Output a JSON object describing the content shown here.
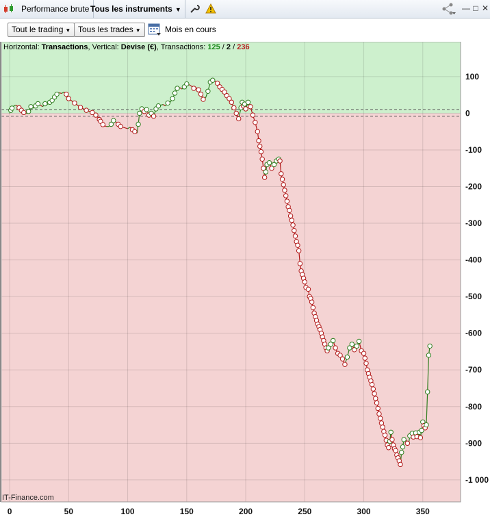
{
  "toolbar": {
    "perf_label": "Performance brute",
    "instruments_label": "Tous les instruments",
    "trading_filter": "Tout le trading",
    "trades_filter": "Tous les trades",
    "period_label": "Mois en cours"
  },
  "header": {
    "h_prefix": "Horizontal: ",
    "h_value": "Transactions",
    "v_prefix": ", Vertical: ",
    "v_value": "Devise (€)",
    "t_prefix": ", Transactions: ",
    "t_win": "125",
    "sep1": " / ",
    "t_neutral": "2",
    "sep2": " / ",
    "t_loss": "236"
  },
  "brand": "IT-Finance.com",
  "colors": {
    "profit_zone": "#cdf0cd",
    "loss_zone": "#f4d3d3",
    "up_line": "#2e7d1e",
    "down_line": "#b01818"
  },
  "chart_data": {
    "type": "line",
    "xlabel": "",
    "ylabel": "",
    "xlim": [
      -7,
      382
    ],
    "ylim": [
      -1060,
      195
    ],
    "x_ticks": [
      0,
      50,
      100,
      150,
      200,
      250,
      300,
      350
    ],
    "x_tick_labels": [
      "0",
      "50",
      "100",
      "150",
      "200",
      "250",
      "300",
      "350"
    ],
    "y_ticks": [
      100,
      0,
      -100,
      -200,
      -300,
      -400,
      -500,
      -600,
      -700,
      -800,
      -900,
      -1000
    ],
    "y_tick_labels": [
      "100",
      "0",
      "-100",
      "-200",
      "-300",
      "-400",
      "-500",
      "-600",
      "-700",
      "-800",
      "-900",
      "-1 000"
    ],
    "thresholds": [
      10,
      -8
    ],
    "grid": true,
    "series": [
      {
        "points": [
          [
            0,
            0
          ],
          [
            1,
            8
          ],
          [
            2,
            14
          ],
          [
            3,
            18
          ],
          [
            4,
            21
          ],
          [
            5,
            22
          ],
          [
            6,
            21
          ],
          [
            8,
            15
          ],
          [
            10,
            8
          ],
          [
            12,
            2
          ],
          [
            14,
            -1
          ],
          [
            16,
            5
          ],
          [
            18,
            18
          ],
          [
            20,
            14
          ],
          [
            22,
            20
          ],
          [
            24,
            26
          ],
          [
            26,
            22
          ],
          [
            28,
            18
          ],
          [
            30,
            26
          ],
          [
            32,
            24
          ],
          [
            34,
            30
          ],
          [
            36,
            35
          ],
          [
            38,
            44
          ],
          [
            40,
            52
          ],
          [
            42,
            56
          ],
          [
            44,
            54
          ],
          [
            46,
            58
          ],
          [
            48,
            52
          ],
          [
            50,
            40
          ],
          [
            55,
            28
          ],
          [
            60,
            16
          ],
          [
            65,
            8
          ],
          [
            70,
            2
          ],
          [
            72,
            0
          ],
          [
            73,
            -5
          ],
          [
            74,
            -9
          ],
          [
            75,
            -12
          ],
          [
            76,
            -17
          ],
          [
            77,
            -22
          ],
          [
            78,
            -26
          ],
          [
            79,
            -31
          ],
          [
            80,
            -34
          ],
          [
            82,
            -36
          ],
          [
            84,
            -36
          ],
          [
            86,
            -30
          ],
          [
            88,
            -20
          ],
          [
            90,
            -24
          ],
          [
            92,
            -30
          ],
          [
            94,
            -36
          ],
          [
            96,
            -38
          ],
          [
            98,
            -40
          ],
          [
            100,
            -42
          ],
          [
            102,
            -38
          ],
          [
            104,
            -45
          ],
          [
            106,
            -50
          ],
          [
            108,
            -54
          ],
          [
            109,
            -30
          ],
          [
            110,
            0
          ],
          [
            112,
            12
          ],
          [
            114,
            5
          ],
          [
            116,
            10
          ],
          [
            118,
            -5
          ],
          [
            120,
            0
          ],
          [
            122,
            -8
          ],
          [
            124,
            12
          ],
          [
            126,
            20
          ],
          [
            128,
            22
          ],
          [
            130,
            24
          ],
          [
            132,
            20
          ],
          [
            134,
            28
          ],
          [
            136,
            30
          ],
          [
            138,
            40
          ],
          [
            140,
            55
          ],
          [
            142,
            68
          ],
          [
            144,
            70
          ],
          [
            146,
            66
          ],
          [
            148,
            72
          ],
          [
            150,
            80
          ],
          [
            152,
            78
          ],
          [
            154,
            74
          ],
          [
            156,
            68
          ],
          [
            158,
            70
          ],
          [
            160,
            64
          ],
          [
            162,
            52
          ],
          [
            164,
            38
          ],
          [
            166,
            42
          ],
          [
            168,
            60
          ],
          [
            170,
            85
          ],
          [
            172,
            90
          ],
          [
            174,
            88
          ],
          [
            176,
            82
          ],
          [
            178,
            72
          ],
          [
            180,
            65
          ],
          [
            182,
            58
          ],
          [
            184,
            48
          ],
          [
            186,
            40
          ],
          [
            188,
            30
          ],
          [
            190,
            15
          ],
          [
            192,
            0
          ],
          [
            194,
            -15
          ],
          [
            196,
            15
          ],
          [
            197,
            30
          ],
          [
            198,
            20
          ],
          [
            199,
            25
          ],
          [
            200,
            12
          ],
          [
            202,
            30
          ],
          [
            204,
            18
          ],
          [
            206,
            -5
          ],
          [
            208,
            -25
          ],
          [
            210,
            -50
          ],
          [
            211,
            -75
          ],
          [
            212,
            -90
          ],
          [
            213,
            -105
          ],
          [
            214,
            -125
          ],
          [
            215,
            -150
          ],
          [
            216,
            -175
          ],
          [
            217,
            -160
          ],
          [
            218,
            -140
          ],
          [
            220,
            -135
          ],
          [
            222,
            -150
          ],
          [
            224,
            -140
          ],
          [
            226,
            -130
          ],
          [
            228,
            -125
          ],
          [
            229,
            -130
          ],
          [
            230,
            -165
          ],
          [
            231,
            -180
          ],
          [
            232,
            -195
          ],
          [
            233,
            -210
          ],
          [
            234,
            -225
          ],
          [
            235,
            -240
          ],
          [
            236,
            -255
          ],
          [
            237,
            -265
          ],
          [
            238,
            -280
          ],
          [
            239,
            -292
          ],
          [
            240,
            -305
          ],
          [
            241,
            -320
          ],
          [
            242,
            -335
          ],
          [
            243,
            -350
          ],
          [
            244,
            -360
          ],
          [
            245,
            -375
          ],
          [
            246,
            -410
          ],
          [
            247,
            -430
          ],
          [
            248,
            -440
          ],
          [
            249,
            -450
          ],
          [
            250,
            -460
          ],
          [
            251,
            -475
          ],
          [
            253,
            -480
          ],
          [
            254,
            -500
          ],
          [
            255,
            -505
          ],
          [
            256,
            -515
          ],
          [
            257,
            -530
          ],
          [
            258,
            -545
          ],
          [
            259,
            -555
          ],
          [
            260,
            -565
          ],
          [
            261,
            -575
          ],
          [
            262,
            -582
          ],
          [
            263,
            -590
          ],
          [
            264,
            -600
          ],
          [
            265,
            -610
          ],
          [
            266,
            -620
          ],
          [
            267,
            -630
          ],
          [
            268,
            -640
          ],
          [
            269,
            -648
          ],
          [
            270,
            -640
          ],
          [
            272,
            -630
          ],
          [
            274,
            -620
          ],
          [
            276,
            -640
          ],
          [
            278,
            -655
          ],
          [
            280,
            -660
          ],
          [
            282,
            -670
          ],
          [
            284,
            -685
          ],
          [
            286,
            -665
          ],
          [
            288,
            -640
          ],
          [
            290,
            -630
          ],
          [
            292,
            -645
          ],
          [
            294,
            -635
          ],
          [
            296,
            -622
          ],
          [
            298,
            -648
          ],
          [
            300,
            -655
          ],
          [
            301,
            -668
          ],
          [
            302,
            -682
          ],
          [
            303,
            -700
          ],
          [
            304,
            -710
          ],
          [
            305,
            -720
          ],
          [
            306,
            -730
          ],
          [
            307,
            -740
          ],
          [
            308,
            -752
          ],
          [
            309,
            -765
          ],
          [
            310,
            -778
          ],
          [
            311,
            -790
          ],
          [
            312,
            -805
          ],
          [
            313,
            -820
          ],
          [
            314,
            -832
          ],
          [
            315,
            -845
          ],
          [
            316,
            -856
          ],
          [
            317,
            -868
          ],
          [
            318,
            -878
          ],
          [
            319,
            -892
          ],
          [
            320,
            -905
          ],
          [
            321,
            -912
          ],
          [
            322,
            -895
          ],
          [
            323,
            -870
          ],
          [
            324,
            -890
          ],
          [
            325,
            -905
          ],
          [
            326,
            -915
          ],
          [
            327,
            -920
          ],
          [
            328,
            -932
          ],
          [
            329,
            -940
          ],
          [
            330,
            -948
          ],
          [
            331,
            -958
          ],
          [
            332,
            -925
          ],
          [
            333,
            -910
          ],
          [
            334,
            -890
          ],
          [
            336,
            -892
          ],
          [
            337,
            -900
          ],
          [
            338,
            -902
          ],
          [
            339,
            -880
          ],
          [
            341,
            -873
          ],
          [
            342,
            -883
          ],
          [
            344,
            -872
          ],
          [
            345,
            -882
          ],
          [
            346,
            -880
          ],
          [
            347,
            -870
          ],
          [
            348,
            -885
          ],
          [
            349,
            -865
          ],
          [
            350,
            -842
          ],
          [
            351,
            -852
          ],
          [
            352,
            -858
          ],
          [
            353,
            -850
          ],
          [
            354,
            -760
          ],
          [
            355,
            -660
          ],
          [
            356,
            -635
          ]
        ]
      }
    ]
  }
}
